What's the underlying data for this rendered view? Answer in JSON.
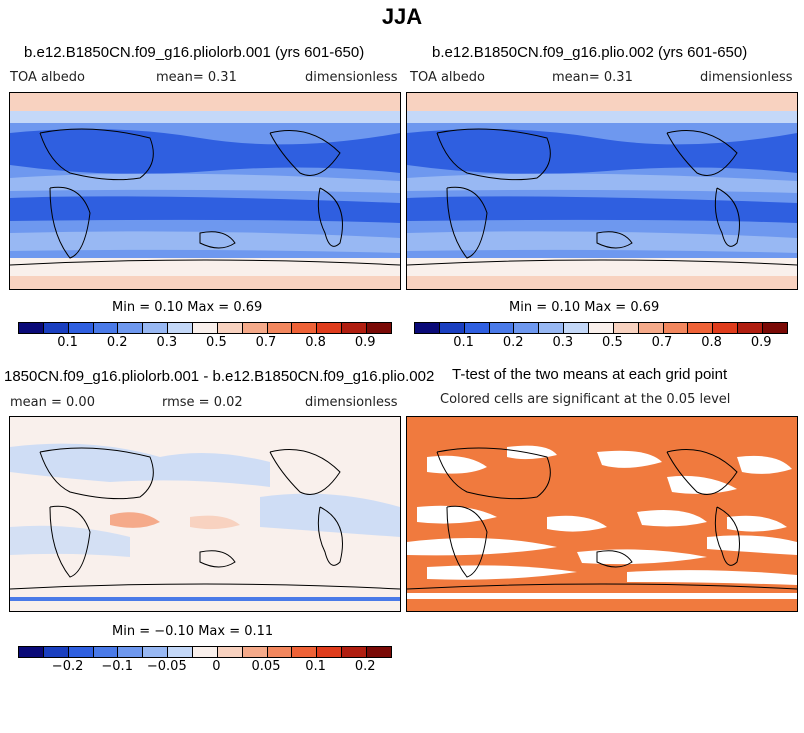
{
  "page_title": "JJA",
  "panels": {
    "p1": {
      "title": "b.e12.B1850CN.f09_g16.pliolorb.001 (yrs 601-650)",
      "var": "TOA albedo",
      "mean": "mean=     0.31",
      "units": "dimensionless",
      "minmax": "Min =    0.10 Max =    0.69"
    },
    "p2": {
      "title": "b.e12.B1850CN.f09_g16.plio.002 (yrs 601-650)",
      "var": "TOA albedo",
      "mean": "mean=     0.31",
      "units": "dimensionless",
      "minmax": "Min =    0.10 Max =    0.69"
    },
    "p3": {
      "title": "1850CN.f09_g16.pliolorb.001 - b.e12.B1850CN.f09_g16.plio.002",
      "mean": "mean =    0.00",
      "rmse": "rmse =    0.02",
      "units": "dimensionless",
      "minmax": "Min =  −0.10 Max =    0.11"
    },
    "p4": {
      "title": "T-test of the two means at each grid point",
      "subtitle": "Colored cells are significant at the 0.05 level"
    }
  },
  "colorbars": {
    "abs_labels": [
      "0.1",
      "0.2",
      "0.3",
      "0.5",
      "0.7",
      "0.8",
      "0.9"
    ],
    "diff_labels": [
      "−0.2",
      "−0.1",
      "−0.05",
      "0",
      "0.05",
      "0.1",
      "0.2"
    ],
    "colors": [
      "#0a0a78",
      "#1a3fc0",
      "#2f5fe0",
      "#4a7ae8",
      "#6e98ef",
      "#98b8f3",
      "#c4d8f8",
      "#f9f0ec",
      "#f8d2c0",
      "#f5aa8a",
      "#f2875e",
      "#ee6237",
      "#df3c1c",
      "#b01e10",
      "#7a0a06"
    ]
  },
  "colors": {
    "sig_fill": "#f07a3e",
    "ocean_blue": "#3f6fe6",
    "ice_pink": "#f9d4c2"
  }
}
